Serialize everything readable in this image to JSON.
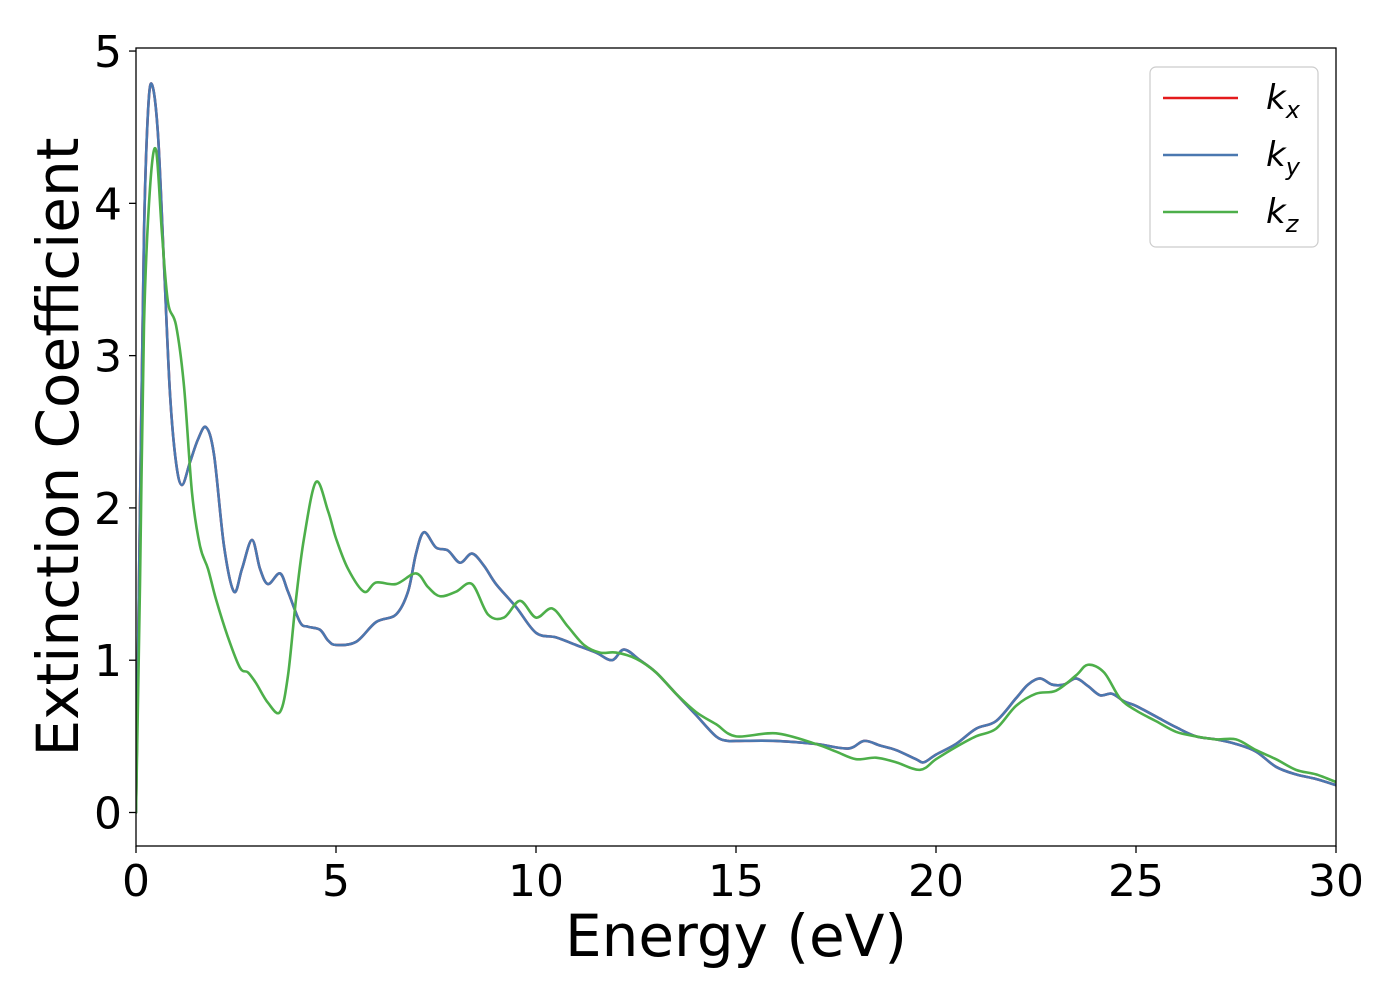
{
  "chart_data": {
    "type": "line",
    "xlabel": "Energy (eV)",
    "ylabel": "Extinction Coefficient",
    "xlim": [
      0,
      30
    ],
    "ylim": [
      -0.22,
      5.02
    ],
    "xticks": [
      0,
      5,
      10,
      15,
      20,
      25,
      30
    ],
    "yticks": [
      0,
      1,
      2,
      3,
      4,
      5
    ],
    "grid": false,
    "legend_position": "top-right",
    "series": [
      {
        "name": "k_x",
        "legend_base": "k",
        "legend_sub": "x",
        "color": "#e41a1c",
        "x": [
          0,
          0.1,
          0.2,
          0.3,
          0.4,
          0.55,
          0.7,
          0.85,
          1.0,
          1.15,
          1.35,
          1.55,
          1.75,
          1.95,
          2.2,
          2.45,
          2.65,
          2.9,
          3.1,
          3.3,
          3.6,
          3.8,
          4.1,
          4.3,
          4.6,
          4.8,
          5.0,
          5.5,
          6.0,
          6.5,
          6.8,
          7.0,
          7.2,
          7.5,
          7.8,
          8.1,
          8.4,
          8.7,
          9.0,
          9.5,
          10.0,
          10.5,
          11.0,
          11.5,
          11.9,
          12.2,
          12.6,
          13.0,
          13.5,
          14.0,
          14.5,
          14.8,
          15.0,
          16.0,
          17.0,
          17.8,
          18.2,
          18.6,
          19.0,
          19.5,
          19.7,
          20.0,
          20.5,
          21.0,
          21.5,
          22.0,
          22.3,
          22.6,
          22.9,
          23.2,
          23.5,
          23.8,
          24.1,
          24.4,
          24.7,
          25.0,
          25.5,
          26.0,
          26.5,
          27.0,
          27.5,
          28.0,
          28.5,
          29.0,
          29.5,
          30.0
        ],
        "y": [
          0.0,
          2.0,
          3.8,
          4.6,
          4.78,
          4.45,
          3.6,
          2.75,
          2.3,
          2.15,
          2.3,
          2.45,
          2.53,
          2.35,
          1.75,
          1.45,
          1.6,
          1.79,
          1.6,
          1.5,
          1.57,
          1.45,
          1.25,
          1.22,
          1.2,
          1.13,
          1.1,
          1.12,
          1.25,
          1.3,
          1.45,
          1.7,
          1.84,
          1.74,
          1.72,
          1.64,
          1.7,
          1.62,
          1.5,
          1.35,
          1.18,
          1.15,
          1.1,
          1.05,
          1.0,
          1.07,
          1.0,
          0.92,
          0.78,
          0.64,
          0.5,
          0.47,
          0.47,
          0.47,
          0.45,
          0.42,
          0.47,
          0.44,
          0.41,
          0.35,
          0.33,
          0.38,
          0.45,
          0.55,
          0.6,
          0.75,
          0.84,
          0.88,
          0.84,
          0.84,
          0.88,
          0.83,
          0.77,
          0.78,
          0.73,
          0.7,
          0.63,
          0.56,
          0.5,
          0.48,
          0.45,
          0.4,
          0.3,
          0.25,
          0.22,
          0.18
        ]
      },
      {
        "name": "k_y",
        "legend_base": "k",
        "legend_sub": "y",
        "color": "#4a78b0",
        "x": [
          0,
          0.1,
          0.2,
          0.3,
          0.4,
          0.55,
          0.7,
          0.85,
          1.0,
          1.15,
          1.35,
          1.55,
          1.75,
          1.95,
          2.2,
          2.45,
          2.65,
          2.9,
          3.1,
          3.3,
          3.6,
          3.8,
          4.1,
          4.3,
          4.6,
          4.8,
          5.0,
          5.5,
          6.0,
          6.5,
          6.8,
          7.0,
          7.2,
          7.5,
          7.8,
          8.1,
          8.4,
          8.7,
          9.0,
          9.5,
          10.0,
          10.5,
          11.0,
          11.5,
          11.9,
          12.2,
          12.6,
          13.0,
          13.5,
          14.0,
          14.5,
          14.8,
          15.0,
          16.0,
          17.0,
          17.8,
          18.2,
          18.6,
          19.0,
          19.5,
          19.7,
          20.0,
          20.5,
          21.0,
          21.5,
          22.0,
          22.3,
          22.6,
          22.9,
          23.2,
          23.5,
          23.8,
          24.1,
          24.4,
          24.7,
          25.0,
          25.5,
          26.0,
          26.5,
          27.0,
          27.5,
          28.0,
          28.5,
          29.0,
          29.5,
          30.0
        ],
        "y": [
          0.0,
          2.0,
          3.8,
          4.6,
          4.78,
          4.45,
          3.6,
          2.75,
          2.3,
          2.15,
          2.3,
          2.45,
          2.53,
          2.35,
          1.75,
          1.45,
          1.6,
          1.79,
          1.6,
          1.5,
          1.57,
          1.45,
          1.25,
          1.22,
          1.2,
          1.13,
          1.1,
          1.12,
          1.25,
          1.3,
          1.45,
          1.7,
          1.84,
          1.74,
          1.72,
          1.64,
          1.7,
          1.62,
          1.5,
          1.35,
          1.18,
          1.15,
          1.1,
          1.05,
          1.0,
          1.07,
          1.0,
          0.92,
          0.78,
          0.64,
          0.5,
          0.47,
          0.47,
          0.47,
          0.45,
          0.42,
          0.47,
          0.44,
          0.41,
          0.35,
          0.33,
          0.38,
          0.45,
          0.55,
          0.6,
          0.75,
          0.84,
          0.88,
          0.84,
          0.84,
          0.88,
          0.83,
          0.77,
          0.78,
          0.73,
          0.7,
          0.63,
          0.56,
          0.5,
          0.48,
          0.45,
          0.4,
          0.3,
          0.25,
          0.22,
          0.18
        ]
      },
      {
        "name": "k_z",
        "legend_base": "k",
        "legend_sub": "z",
        "color": "#4daf4a",
        "x": [
          0,
          0.1,
          0.2,
          0.35,
          0.5,
          0.65,
          0.8,
          1.0,
          1.2,
          1.4,
          1.6,
          1.8,
          2.0,
          2.3,
          2.6,
          2.8,
          3.0,
          3.3,
          3.6,
          3.8,
          4.0,
          4.2,
          4.5,
          4.8,
          5.0,
          5.3,
          5.7,
          6.0,
          6.5,
          7.0,
          7.3,
          7.6,
          8.0,
          8.4,
          8.8,
          9.2,
          9.6,
          10.0,
          10.4,
          10.8,
          11.2,
          11.6,
          12.0,
          12.5,
          13.0,
          13.5,
          14.0,
          14.5,
          15.0,
          16.0,
          17.0,
          17.5,
          18.0,
          18.5,
          19.0,
          19.6,
          20.0,
          20.5,
          21.0,
          21.5,
          22.0,
          22.5,
          23.0,
          23.5,
          23.8,
          24.2,
          24.6,
          25.0,
          25.5,
          26.0,
          26.5,
          27.0,
          27.5,
          28.0,
          28.5,
          29.0,
          29.5,
          30.0
        ],
        "y": [
          0.0,
          1.5,
          3.2,
          4.1,
          4.35,
          3.8,
          3.35,
          3.2,
          2.8,
          2.1,
          1.75,
          1.6,
          1.4,
          1.15,
          0.95,
          0.92,
          0.85,
          0.72,
          0.66,
          0.9,
          1.4,
          1.8,
          2.17,
          1.98,
          1.8,
          1.6,
          1.45,
          1.51,
          1.5,
          1.57,
          1.48,
          1.42,
          1.45,
          1.5,
          1.3,
          1.28,
          1.39,
          1.28,
          1.34,
          1.22,
          1.1,
          1.05,
          1.05,
          1.01,
          0.92,
          0.78,
          0.66,
          0.58,
          0.5,
          0.52,
          0.45,
          0.4,
          0.35,
          0.36,
          0.33,
          0.28,
          0.35,
          0.43,
          0.5,
          0.55,
          0.7,
          0.78,
          0.8,
          0.9,
          0.97,
          0.92,
          0.75,
          0.67,
          0.6,
          0.53,
          0.5,
          0.48,
          0.48,
          0.41,
          0.35,
          0.28,
          0.25,
          0.2
        ]
      }
    ]
  }
}
